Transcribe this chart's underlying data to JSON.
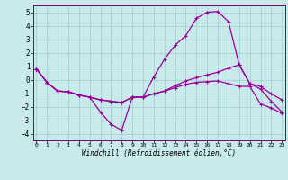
{
  "background_color": "#c8eaea",
  "plot_bg_color": "#c8eaea",
  "grid_color": "#a0cccc",
  "line_color": "#990099",
  "spine_color": "#770077",
  "xlim": [
    -0.3,
    23.3
  ],
  "ylim": [
    -4.5,
    5.5
  ],
  "yticks": [
    -4,
    -3,
    -2,
    -1,
    0,
    1,
    2,
    3,
    4,
    5
  ],
  "xticks": [
    0,
    1,
    2,
    3,
    4,
    5,
    6,
    7,
    8,
    9,
    10,
    11,
    12,
    13,
    14,
    15,
    16,
    17,
    18,
    19,
    20,
    21,
    22,
    23
  ],
  "xlabel": "Windchill (Refroidissement éolien,°C)",
  "series1_x": [
    0,
    1,
    2,
    3,
    4,
    5,
    6,
    7,
    8,
    9,
    10,
    11,
    12,
    13,
    14,
    15,
    16,
    17,
    18,
    19,
    20,
    21,
    22,
    23
  ],
  "series1_y": [
    0.8,
    -0.2,
    -0.85,
    -0.9,
    -1.15,
    -1.3,
    -2.4,
    -3.3,
    -3.75,
    -1.3,
    -1.3,
    0.2,
    1.5,
    2.55,
    3.25,
    4.55,
    5.0,
    5.05,
    4.3,
    1.1,
    -0.3,
    -0.5,
    -1.05,
    -1.5
  ],
  "series2_x": [
    0,
    1,
    2,
    3,
    4,
    5,
    6,
    7,
    8,
    9,
    10,
    11,
    12,
    13,
    14,
    15,
    16,
    17,
    18,
    19,
    20,
    21,
    22,
    23
  ],
  "series2_y": [
    0.8,
    -0.2,
    -0.85,
    -0.9,
    -1.15,
    -1.3,
    -1.5,
    -1.6,
    -1.7,
    -1.3,
    -1.3,
    -1.05,
    -0.85,
    -0.45,
    -0.1,
    0.15,
    0.35,
    0.55,
    0.85,
    1.1,
    -0.3,
    -0.7,
    -1.6,
    -2.4
  ],
  "series3_x": [
    0,
    1,
    2,
    3,
    4,
    5,
    6,
    7,
    8,
    9,
    10,
    11,
    12,
    13,
    14,
    15,
    16,
    17,
    18,
    19,
    20,
    21,
    22,
    23
  ],
  "series3_y": [
    0.8,
    -0.2,
    -0.85,
    -0.9,
    -1.15,
    -1.3,
    -1.5,
    -1.6,
    -1.7,
    -1.3,
    -1.3,
    -1.05,
    -0.85,
    -0.6,
    -0.35,
    -0.2,
    -0.15,
    -0.1,
    -0.3,
    -0.5,
    -0.5,
    -1.8,
    -2.1,
    -2.5
  ]
}
